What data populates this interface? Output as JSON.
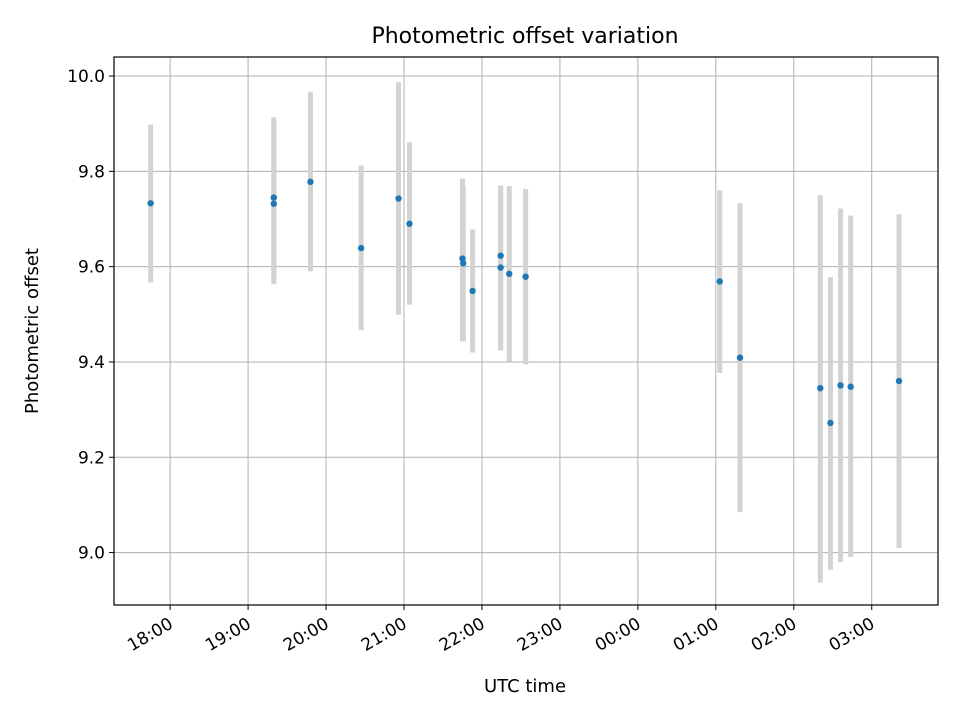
{
  "chart_data": {
    "type": "scatter",
    "title": "Photometric offset variation",
    "xlabel": "UTC time",
    "ylabel": "Photometric offset",
    "x_tick_labels": [
      "18:00",
      "19:00",
      "20:00",
      "21:00",
      "22:00",
      "23:00",
      "00:00",
      "01:00",
      "02:00",
      "03:00"
    ],
    "x_ticks_hours": [
      18,
      19,
      20,
      21,
      22,
      23,
      24,
      25,
      26,
      27
    ],
    "xlim_hours": [
      17.28,
      27.85
    ],
    "ylim": [
      8.89,
      10.04
    ],
    "y_ticks": [
      9.0,
      9.2,
      9.4,
      9.6,
      9.8,
      10.0
    ],
    "y_tick_labels": [
      "9.0",
      "9.2",
      "9.4",
      "9.6",
      "9.8",
      "10.0"
    ],
    "grid": true,
    "point_color": "#1f77b4",
    "errorbar_color": "#d3d3d3",
    "points": [
      {
        "t": 17.75,
        "y": 9.733,
        "lo": 9.567,
        "hi": 9.898
      },
      {
        "t": 19.33,
        "y": 9.745,
        "lo": 9.578,
        "hi": 9.913
      },
      {
        "t": 19.33,
        "y": 9.732,
        "lo": 9.563,
        "hi": 9.902
      },
      {
        "t": 19.8,
        "y": 9.778,
        "lo": 9.59,
        "hi": 9.967
      },
      {
        "t": 20.45,
        "y": 9.639,
        "lo": 9.467,
        "hi": 9.812
      },
      {
        "t": 20.93,
        "y": 9.743,
        "lo": 9.499,
        "hi": 9.987
      },
      {
        "t": 21.07,
        "y": 9.69,
        "lo": 9.52,
        "hi": 9.861
      },
      {
        "t": 21.75,
        "y": 9.617,
        "lo": 9.443,
        "hi": 9.785
      },
      {
        "t": 21.76,
        "y": 9.607,
        "lo": 9.444,
        "hi": 9.77
      },
      {
        "t": 21.88,
        "y": 9.549,
        "lo": 9.42,
        "hi": 9.678
      },
      {
        "t": 22.24,
        "y": 9.623,
        "lo": 9.425,
        "hi": 9.77
      },
      {
        "t": 22.24,
        "y": 9.598,
        "lo": 9.424,
        "hi": 9.77
      },
      {
        "t": 22.35,
        "y": 9.585,
        "lo": 9.401,
        "hi": 9.769
      },
      {
        "t": 22.56,
        "y": 9.579,
        "lo": 9.395,
        "hi": 9.763
      },
      {
        "t": 25.05,
        "y": 9.569,
        "lo": 9.377,
        "hi": 9.76
      },
      {
        "t": 25.31,
        "y": 9.409,
        "lo": 9.085,
        "hi": 9.733
      },
      {
        "t": 26.34,
        "y": 9.345,
        "lo": 8.937,
        "hi": 9.75
      },
      {
        "t": 26.47,
        "y": 9.272,
        "lo": 8.964,
        "hi": 9.578
      },
      {
        "t": 26.6,
        "y": 9.351,
        "lo": 8.98,
        "hi": 9.722
      },
      {
        "t": 26.73,
        "y": 9.348,
        "lo": 8.991,
        "hi": 9.707
      },
      {
        "t": 27.35,
        "y": 9.36,
        "lo": 9.01,
        "hi": 9.71
      }
    ]
  }
}
